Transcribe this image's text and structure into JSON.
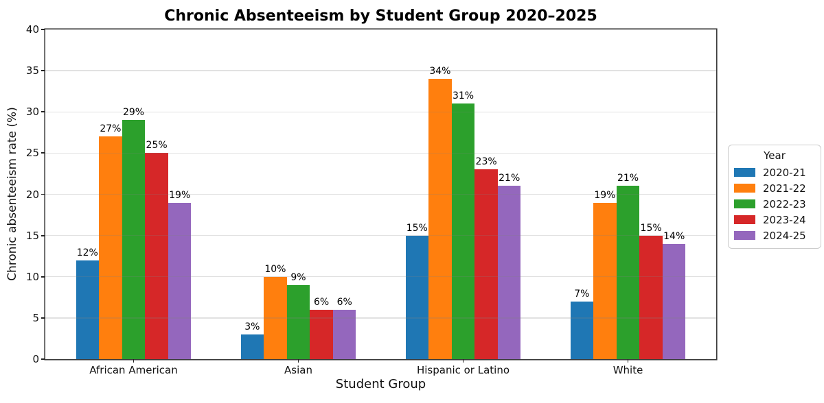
{
  "chart_data": {
    "type": "bar",
    "title": "Chronic Absenteeism by Student Group 2020–2025",
    "xlabel": "Student Group",
    "ylabel": "Chronic absenteeism rate (%)",
    "categories": [
      "African American",
      "Asian",
      "Hispanic or Latino",
      "White"
    ],
    "series": [
      {
        "name": "2020-21",
        "color": "#1f77b4",
        "values": [
          12,
          3,
          15,
          7
        ]
      },
      {
        "name": "2021-22",
        "color": "#ff7f0e",
        "values": [
          27,
          10,
          34,
          19
        ]
      },
      {
        "name": "2022-23",
        "color": "#2ca02c",
        "values": [
          29,
          9,
          31,
          21
        ]
      },
      {
        "name": "2023-24",
        "color": "#d62728",
        "values": [
          25,
          6,
          23,
          15
        ]
      },
      {
        "name": "2024-25",
        "color": "#9467bd",
        "values": [
          19,
          6,
          21,
          14
        ]
      }
    ],
    "data_label_suffix": "%",
    "ylim": [
      0,
      40
    ],
    "yticks": [
      0,
      5,
      10,
      15,
      20,
      25,
      30,
      35,
      40
    ],
    "grid": true,
    "legend": {
      "title": "Year",
      "position": "right"
    }
  }
}
